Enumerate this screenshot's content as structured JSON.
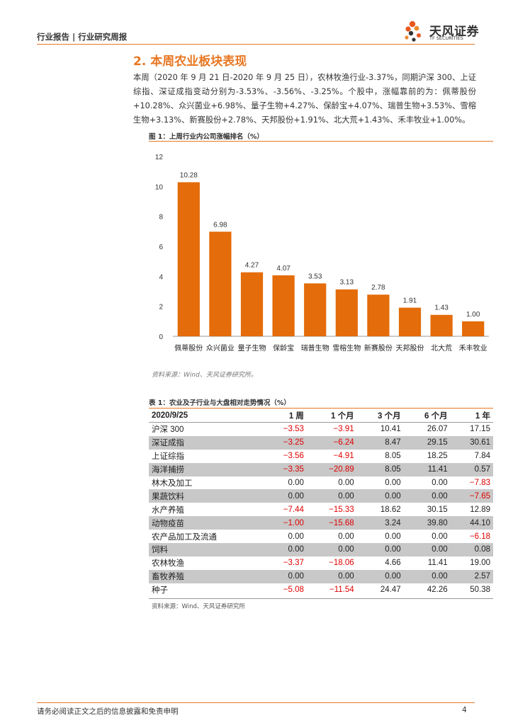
{
  "header": {
    "left": "行业报告 | 行业研究周报",
    "logo_cn": "天风证券",
    "logo_en": "TF SECURITIES"
  },
  "section": {
    "title": "2. 本周农业板块表现",
    "body": "本周（2020 年 9 月 21 日-2020 年 9 月 25 日），农林牧渔行业-3.37%，同期沪深 300、上证综指、深证成指变动分别为-3.53%、-3.56%、-3.25%。个股中，涨幅靠前的为：佩蒂股份+10.28%、众兴菌业+6.98%、量子生物+4.27%、保龄宝+4.07%、瑞普生物+3.53%、雪榕生物+3.13%、新赛股份+2.78%、天邦股份+1.91%、北大荒+1.43%、禾丰牧业+1.00%。"
  },
  "figure": {
    "title": "图 1：上周行业内公司涨幅排名（%）",
    "source": "资料来源：Wind、天风证券研究所。"
  },
  "chart_data": {
    "type": "bar",
    "title": "上周行业内公司涨幅排名（%）",
    "categories": [
      "佩蒂股份",
      "众兴菌业",
      "量子生物",
      "保龄宝",
      "瑞普生物",
      "雪榕生物",
      "新赛股份",
      "天邦股份",
      "北大荒",
      "禾丰牧业"
    ],
    "values": [
      10.28,
      6.98,
      4.27,
      4.07,
      3.53,
      3.13,
      2.78,
      1.91,
      1.43,
      1.0
    ],
    "value_labels": [
      "10.28",
      "6.98",
      "4.27",
      "4.07",
      "3.53",
      "3.13",
      "2.78",
      "1.91",
      "1.43",
      "1.00"
    ],
    "yticks": [
      "0",
      "2",
      "4",
      "6",
      "8",
      "10",
      "12"
    ],
    "ylim": [
      0,
      12
    ],
    "xlabel": "",
    "ylabel": "",
    "grid": false,
    "bar_color": "#e46c0a"
  },
  "table": {
    "title": "表 1：农业及子行业与大盘相对走势情况（%）",
    "headers": [
      "2020/9/25",
      "1 周",
      "1 个月",
      "3 个月",
      "6 个月",
      "1 年"
    ],
    "rows": [
      [
        "沪深 300",
        "−3.53",
        "−3.91",
        "10.41",
        "26.07",
        "17.15"
      ],
      [
        "深证成指",
        "−3.25",
        "−6.24",
        "8.47",
        "29.15",
        "30.61"
      ],
      [
        "上证综指",
        "−3.56",
        "−4.91",
        "8.05",
        "18.25",
        "7.84"
      ],
      [
        "海洋捕捞",
        "−3.35",
        "−20.89",
        "8.05",
        "11.41",
        "0.57"
      ],
      [
        "林木及加工",
        "0.00",
        "0.00",
        "0.00",
        "0.00",
        "−7.83"
      ],
      [
        "果蔬饮料",
        "0.00",
        "0.00",
        "0.00",
        "0.00",
        "−7.65"
      ],
      [
        "水产养殖",
        "−7.44",
        "−15.33",
        "18.62",
        "30.15",
        "12.89"
      ],
      [
        "动物疫苗",
        "−1.00",
        "−15.68",
        "3.24",
        "39.80",
        "44.10"
      ],
      [
        "农产品加工及流通",
        "0.00",
        "0.00",
        "0.00",
        "0.00",
        "−6.18"
      ],
      [
        "饲料",
        "0.00",
        "0.00",
        "0.00",
        "0.00",
        "0.08"
      ],
      [
        "农林牧渔",
        "−3.37",
        "−18.06",
        "4.66",
        "11.41",
        "19.00"
      ],
      [
        "畜牧养殖",
        "0.00",
        "0.00",
        "0.00",
        "0.00",
        "2.57"
      ],
      [
        "种子",
        "−5.08",
        "−11.54",
        "24.47",
        "42.26",
        "50.38"
      ]
    ],
    "source": "资料来源：Wind、天风证券研究所"
  },
  "footer": {
    "disclaimer": "请务必阅读正文之后的信息披露和免责申明",
    "page": "4"
  },
  "colors": {
    "accent": "#e87722",
    "bar": "#e46c0a",
    "negative": "#e00000",
    "shade": "#c8c8c8"
  }
}
